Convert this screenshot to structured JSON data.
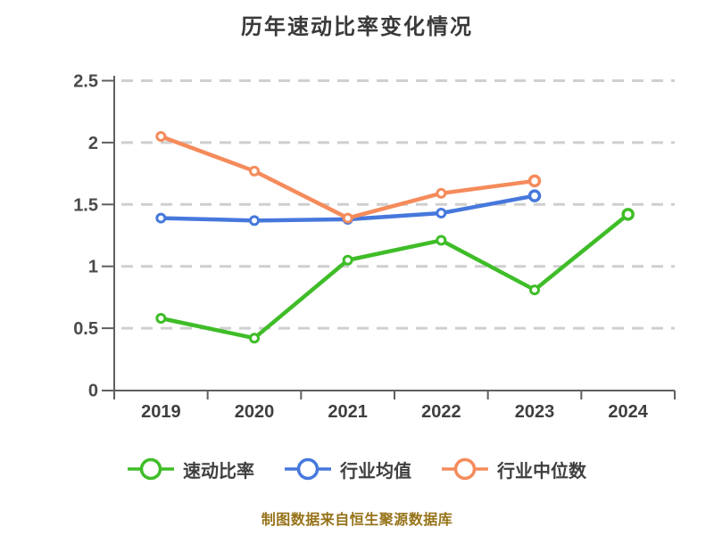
{
  "title": "历年速动比率变化情况",
  "footer": "制图数据来自恒生聚源数据库",
  "colors": {
    "title": "#3a3a3a",
    "axis": "#5f5f5f",
    "grid": "#cfcfcf",
    "tick_label": "#4a4a4a",
    "x_label": "#3f3f3f",
    "legend_text": "#3f3f3f",
    "footer": "#96731a",
    "marker_fill": "#ffffff"
  },
  "chart_data": {
    "type": "line",
    "title": "历年速动比率变化情况",
    "categories": [
      "2019",
      "2020",
      "2021",
      "2022",
      "2023",
      "2024"
    ],
    "series": [
      {
        "id": "quick-ratio",
        "name": "速动比率",
        "color": "#3fbd28",
        "marker": "circle",
        "values": [
          0.58,
          0.42,
          1.05,
          1.21,
          0.81,
          1.42
        ]
      },
      {
        "id": "industry-average",
        "name": "行业均值",
        "color": "#4678dc",
        "marker": "circle",
        "values": [
          1.39,
          1.37,
          1.38,
          1.43,
          1.57,
          null
        ]
      },
      {
        "id": "industry-median",
        "name": "行业中位数",
        "color": "#f58b5b",
        "marker": "circle",
        "values": [
          2.05,
          1.77,
          1.39,
          1.59,
          1.69,
          null
        ]
      }
    ],
    "ylim": [
      0,
      2.5
    ],
    "yticks": [
      0,
      0.5,
      1,
      1.5,
      2,
      2.5
    ],
    "grid": "horizontal-dashed",
    "legend_position": "bottom",
    "xlabel": "",
    "ylabel": ""
  }
}
